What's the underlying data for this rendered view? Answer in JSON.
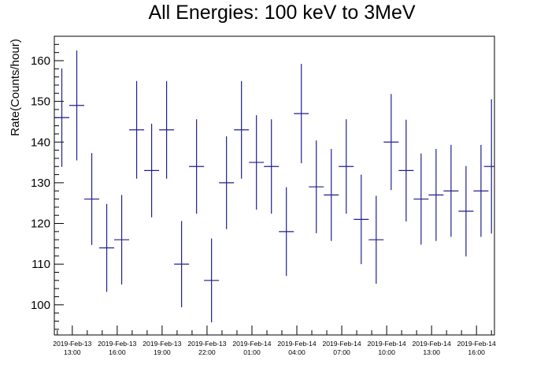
{
  "chart_data": {
    "type": "scatter",
    "title": "All Energies:  100 keV to 3MeV",
    "ylabel": "Rate(Counts/hour)",
    "xlabel": "",
    "x_tick_labels": [
      [
        "2019-Feb-13",
        "13:00"
      ],
      [
        "2019-Feb-13",
        "16:00"
      ],
      [
        "2019-Feb-13",
        "19:00"
      ],
      [
        "2019-Feb-13",
        "22:00"
      ],
      [
        "2019-Feb-14",
        "01:00"
      ],
      [
        "2019-Feb-14",
        "04:00"
      ],
      [
        "2019-Feb-14",
        "07:00"
      ],
      [
        "2019-Feb-14",
        "10:00"
      ],
      [
        "2019-Feb-14",
        "13:00"
      ],
      [
        "2019-Feb-14",
        "16:00"
      ]
    ],
    "x_tick_hours": [
      13,
      16,
      19,
      22,
      25,
      28,
      31,
      34,
      37,
      40
    ],
    "xlim": [
      11.8,
      41.2
    ],
    "ylim": [
      92.6,
      166
    ],
    "y_ticks": [
      100,
      110,
      120,
      130,
      140,
      150,
      160
    ],
    "grid": false,
    "color": "#1f1f8f",
    "series": [
      {
        "values": [
          {
            "x": 12.3,
            "y": 146,
            "err": 12.1
          },
          {
            "x": 13.3,
            "y": 149,
            "err": 13.5
          },
          {
            "x": 14.3,
            "y": 126,
            "err": 11.3
          },
          {
            "x": 15.3,
            "y": 114,
            "err": 10.8
          },
          {
            "x": 16.3,
            "y": 116,
            "err": 11.0
          },
          {
            "x": 17.3,
            "y": 143,
            "err": 12.0
          },
          {
            "x": 18.3,
            "y": 133,
            "err": 11.5
          },
          {
            "x": 19.3,
            "y": 143,
            "err": 12.0
          },
          {
            "x": 20.3,
            "y": 110,
            "err": 10.6
          },
          {
            "x": 21.3,
            "y": 134,
            "err": 11.6
          },
          {
            "x": 22.3,
            "y": 106,
            "err": 10.3
          },
          {
            "x": 23.3,
            "y": 130,
            "err": 11.4
          },
          {
            "x": 24.3,
            "y": 143,
            "err": 12.0
          },
          {
            "x": 25.3,
            "y": 135,
            "err": 11.6
          },
          {
            "x": 26.3,
            "y": 134,
            "err": 11.6
          },
          {
            "x": 27.3,
            "y": 118,
            "err": 10.9
          },
          {
            "x": 28.3,
            "y": 147,
            "err": 12.2
          },
          {
            "x": 29.3,
            "y": 129,
            "err": 11.4
          },
          {
            "x": 30.3,
            "y": 127,
            "err": 11.3
          },
          {
            "x": 31.3,
            "y": 134,
            "err": 11.6
          },
          {
            "x": 32.3,
            "y": 121,
            "err": 11.0
          },
          {
            "x": 33.3,
            "y": 116,
            "err": 10.8
          },
          {
            "x": 34.3,
            "y": 140,
            "err": 11.8
          },
          {
            "x": 35.3,
            "y": 133,
            "err": 12.5
          },
          {
            "x": 36.3,
            "y": 126,
            "err": 11.2
          },
          {
            "x": 37.3,
            "y": 127,
            "err": 11.3
          },
          {
            "x": 38.3,
            "y": 128,
            "err": 11.3
          },
          {
            "x": 39.3,
            "y": 123,
            "err": 11.1
          },
          {
            "x": 40.3,
            "y": 128,
            "err": 11.3
          },
          {
            "x": 41.0,
            "y": 134,
            "err": 16.5
          }
        ]
      }
    ]
  }
}
